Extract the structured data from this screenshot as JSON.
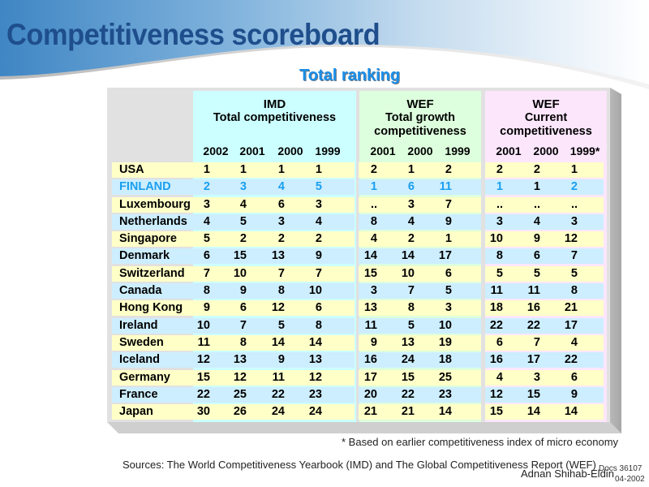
{
  "slide": {
    "title": "Competitiveness scoreboard",
    "subtitle": "Total ranking",
    "colors": {
      "title": "#1f4e8c",
      "subtitle": "#1a8fe8",
      "highlight": "#1a9fef",
      "row_odd": "#ffffc8",
      "row_even": "#cdeeff",
      "imd_group": "#ccffff",
      "wef_growth_group": "#ddffdd",
      "wef_current_group": "#fce6fc",
      "card": "#e1e1e1"
    }
  },
  "table": {
    "groups": [
      {
        "title": "IMD",
        "subtitle": "Total competitiveness",
        "years": [
          "2002",
          "2001",
          "2000",
          "1999"
        ]
      },
      {
        "title": "WEF",
        "subtitle": "Total growth competitiveness",
        "subtitle_lines": [
          "Total growth",
          "competitiveness"
        ],
        "years": [
          "2001",
          "2000",
          "1999"
        ]
      },
      {
        "title": "WEF",
        "subtitle": "Current competitiveness",
        "subtitle_lines": [
          "Current",
          "competitiveness"
        ],
        "years": [
          "2001",
          "2000",
          "1999*"
        ]
      }
    ],
    "rows": [
      {
        "country": "USA",
        "imd": [
          "1",
          "1",
          "1",
          "1"
        ],
        "wef_growth": [
          "2",
          "1",
          "2"
        ],
        "wef_current": [
          "2",
          "2",
          "1"
        ]
      },
      {
        "country": "FINLAND",
        "highlight": true,
        "imd": [
          "2",
          "3",
          "4",
          "5"
        ],
        "wef_growth": [
          "1",
          "6",
          "11"
        ],
        "wef_current": [
          "1",
          "1",
          "2"
        ],
        "highlight_cells": {
          "imd": [
            true,
            true,
            true,
            true
          ],
          "wef_growth": [
            true,
            true,
            true
          ],
          "wef_current": [
            true,
            false,
            true
          ]
        }
      },
      {
        "country": "Luxembourg",
        "imd": [
          "3",
          "4",
          "6",
          "3"
        ],
        "wef_growth": [
          "..",
          "3",
          "7"
        ],
        "wef_current": [
          "..",
          "..",
          ".."
        ]
      },
      {
        "country": "Netherlands",
        "imd": [
          "4",
          "5",
          "3",
          "4"
        ],
        "wef_growth": [
          "8",
          "4",
          "9"
        ],
        "wef_current": [
          "3",
          "4",
          "3"
        ]
      },
      {
        "country": "Singapore",
        "imd": [
          "5",
          "2",
          "2",
          "2"
        ],
        "wef_growth": [
          "4",
          "2",
          "1"
        ],
        "wef_current": [
          "10",
          "9",
          "12"
        ]
      },
      {
        "country": "Denmark",
        "imd": [
          "6",
          "15",
          "13",
          "9"
        ],
        "wef_growth": [
          "14",
          "14",
          "17"
        ],
        "wef_current": [
          "8",
          "6",
          "7"
        ]
      },
      {
        "country": "Switzerland",
        "imd": [
          "7",
          "10",
          "7",
          "7"
        ],
        "wef_growth": [
          "15",
          "10",
          "6"
        ],
        "wef_current": [
          "5",
          "5",
          "5"
        ]
      },
      {
        "country": "Canada",
        "imd": [
          "8",
          "9",
          "8",
          "10"
        ],
        "wef_growth": [
          "3",
          "7",
          "5"
        ],
        "wef_current": [
          "11",
          "11",
          "8"
        ]
      },
      {
        "country": "Hong Kong",
        "imd": [
          "9",
          "6",
          "12",
          "6"
        ],
        "wef_growth": [
          "13",
          "8",
          "3"
        ],
        "wef_current": [
          "18",
          "16",
          "21"
        ]
      },
      {
        "country": "Ireland",
        "imd": [
          "10",
          "7",
          "5",
          "8"
        ],
        "wef_growth": [
          "11",
          "5",
          "10"
        ],
        "wef_current": [
          "22",
          "22",
          "17"
        ]
      },
      {
        "country": "Sweden",
        "imd": [
          "11",
          "8",
          "14",
          "14"
        ],
        "wef_growth": [
          "9",
          "13",
          "19"
        ],
        "wef_current": [
          "6",
          "7",
          "4"
        ]
      },
      {
        "country": "Iceland",
        "imd": [
          "12",
          "13",
          "9",
          "13"
        ],
        "wef_growth": [
          "16",
          "24",
          "18"
        ],
        "wef_current": [
          "16",
          "17",
          "22"
        ]
      },
      {
        "country": "Germany",
        "imd": [
          "15",
          "12",
          "11",
          "12"
        ],
        "wef_growth": [
          "17",
          "15",
          "25"
        ],
        "wef_current": [
          "4",
          "3",
          "6"
        ]
      },
      {
        "country": "France",
        "imd": [
          "22",
          "25",
          "22",
          "23"
        ],
        "wef_growth": [
          "20",
          "22",
          "23"
        ],
        "wef_current": [
          "12",
          "15",
          "9"
        ]
      },
      {
        "country": "Japan",
        "imd": [
          "30",
          "26",
          "24",
          "24"
        ],
        "wef_growth": [
          "21",
          "21",
          "14"
        ],
        "wef_current": [
          "15",
          "14",
          "14"
        ]
      }
    ]
  },
  "footer": {
    "footnote": "* Based on earlier competitiveness index of micro economy",
    "sources": "Sources: The World Competitiveness Yearbook (IMD) and The Global Competitiveness Report (WEF)",
    "author": "Adnan Shihab-Eldin",
    "doc_ref": "Docs 36107",
    "doc_date": "04-2002"
  }
}
